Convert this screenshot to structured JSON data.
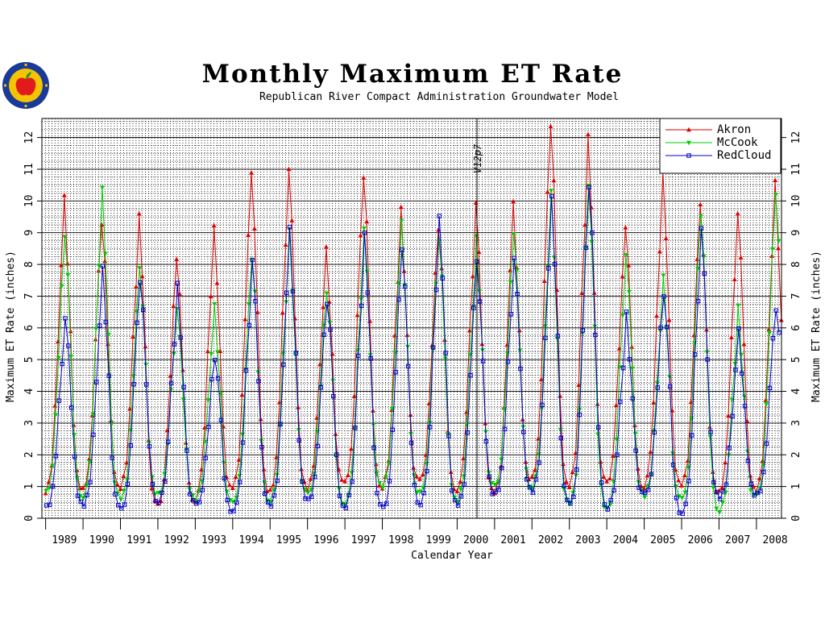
{
  "header": {
    "title": "Monthly Maximum ET Rate",
    "subtitle": "Republican River Compact Administration Groundwater Model"
  },
  "colors": {
    "Akron": "#dd0000",
    "McCook": "#00cc00",
    "RedCloud": "#0000cc",
    "logo_ring": "#1a3a9a",
    "logo_fill": "#f5c400",
    "apple": "#e11b1b"
  },
  "chart_data": {
    "type": "line",
    "xlabel": "Calendar Year",
    "ylabel": "Maximum ET Rate (inches)",
    "ylim": [
      0,
      12.6
    ],
    "xlim": [
      1988.9,
      2008.67
    ],
    "yticks": [
      "0",
      "1",
      "2",
      "3",
      "4",
      "5",
      "6",
      "7",
      "8",
      "9",
      "10",
      "11",
      "12"
    ],
    "years": [
      "1989",
      "1990",
      "1991",
      "1992",
      "1993",
      "1994",
      "1995",
      "1996",
      "1997",
      "1998",
      "1999",
      "2000",
      "2001",
      "2002",
      "2003",
      "2004",
      "2005",
      "2006",
      "2007",
      "2008"
    ],
    "annotation": {
      "text": "V12p7",
      "x": 2000.53
    },
    "grid": true,
    "legend_position": "top-right",
    "series": [
      {
        "name": "Akron",
        "marker": "triangle-up",
        "peaks": [
          9.9,
          9.5,
          9.4,
          8.3,
          9.0,
          11.0,
          11.0,
          8.3,
          10.9,
          9.5,
          9.3,
          9.8,
          9.7,
          12.6,
          11.9,
          9.3,
          10.7,
          10.0,
          9.6,
          10.4
        ],
        "troughs": [
          0.6,
          0.7,
          0.8,
          0.2,
          0.4,
          0.7,
          0.6,
          0.8,
          0.9,
          0.8,
          1.0,
          0.7,
          0.6,
          1.0,
          0.8,
          0.9,
          0.8,
          0.8,
          0.6,
          0.7
        ]
      },
      {
        "name": "McCook",
        "marker": "triangle-down",
        "peaks": [
          9.0,
          10.2,
          8.0,
          6.6,
          6.5,
          8.3,
          8.8,
          7.3,
          9.0,
          9.1,
          9.0,
          8.7,
          9.1,
          10.1,
          10.6,
          8.3,
          7.4,
          9.7,
          6.4,
          10.4
        ],
        "troughs": [
          0.6,
          0.5,
          0.4,
          0.6,
          0.5,
          0.3,
          0.4,
          0.6,
          0.3,
          0.8,
          0.6,
          0.4,
          0.8,
          0.8,
          0.2,
          0.1,
          0.6,
          0.4,
          0.1,
          0.5
        ]
      },
      {
        "name": "RedCloud",
        "marker": "square",
        "peaks": [
          6.3,
          7.7,
          7.6,
          7.1,
          5.2,
          8.0,
          8.9,
          7.0,
          8.8,
          8.6,
          9.3,
          8.2,
          8.2,
          9.9,
          10.6,
          6.2,
          7.2,
          9.0,
          5.7,
          6.8
        ],
        "troughs": [
          0.2,
          0.3,
          0.1,
          0.4,
          0.3,
          0.1,
          0.2,
          0.4,
          0.2,
          0.1,
          0.3,
          0.2,
          0.6,
          0.7,
          0.2,
          0.2,
          0.6,
          0.0,
          0.5,
          0.6
        ]
      }
    ]
  }
}
